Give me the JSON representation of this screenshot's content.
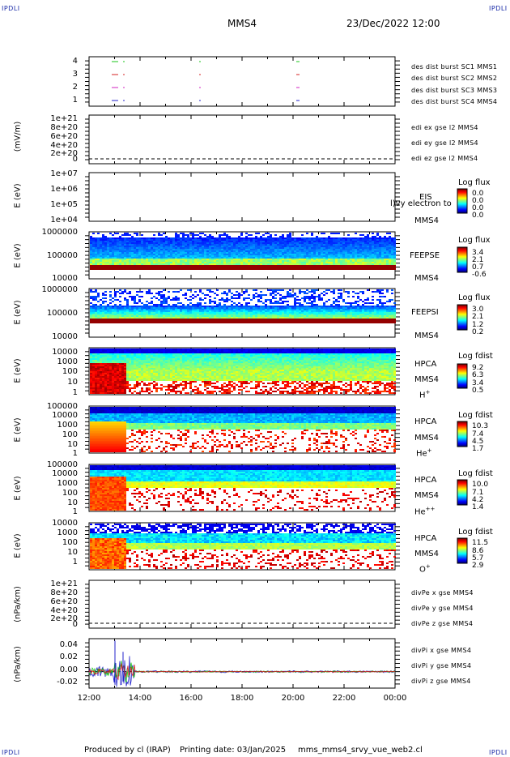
{
  "header": {
    "corner_label": "IPDLI",
    "spacecraft": "MMS4",
    "datetime": "23/Dec/2022 12:00"
  },
  "footer": {
    "produced_by": "Produced by cl (IRAP)",
    "printing_date": "Printing date: 03/Jan/2025",
    "file": "mms_mms4_srvy_vue_web2.cl"
  },
  "colors": {
    "red": "#d42020",
    "green": "#19c419",
    "blue": "#2222cc",
    "magenta": "#d020c0"
  },
  "time_axis": {
    "ticks": [
      "12:00",
      "14:00",
      "16:00",
      "18:00",
      "20:00",
      "22:00",
      "00:00"
    ]
  },
  "chart_data": [
    {
      "type": "scatter",
      "ylabel": "",
      "yticks": [
        "4",
        "3",
        "2",
        "1"
      ],
      "series": [
        {
          "name": "des dist burst SC1 MMS1",
          "color": "#2222cc"
        },
        {
          "name": "des dist burst SC2 MMS2",
          "color": "#d020c0"
        },
        {
          "name": "des dist burst SC3 MMS3",
          "color": "#d42020"
        },
        {
          "name": "des dist burst SC4 MMS4",
          "color": "#19c419"
        }
      ]
    },
    {
      "type": "line",
      "ylabel": "(mV/m)",
      "yticks": [
        "1e+21",
        "8e+20",
        "6e+20",
        "4e+20",
        "2e+20",
        "0"
      ],
      "series": [
        {
          "name": "edi ex gse l2 MMS4",
          "color": "#d42020"
        },
        {
          "name": "edi ey gse l2 MMS4",
          "color": "#19c419"
        },
        {
          "name": "edi ez gse l2 MMS4",
          "color": "#2222cc"
        }
      ]
    },
    {
      "type": "heatmap",
      "ylabel": "E (eV)",
      "yticks": [
        "1e+07",
        "1e+06",
        "1e+05",
        "1e+04"
      ],
      "instrument": "EIS",
      "spacecraft": "MMS4",
      "overlay_text": "l)vy electron to",
      "colorbar": {
        "title": "Log flux",
        "values": [
          "0.0",
          "0.0",
          "0.0",
          "0.0"
        ]
      }
    },
    {
      "type": "heatmap",
      "ylabel": "E (eV)",
      "yticks": [
        "1000000",
        "100000",
        "10000"
      ],
      "instrument": "FEEPSE",
      "spacecraft": "MMS4",
      "colorbar": {
        "title": "Log flux",
        "values": [
          "3.4",
          "2.1",
          "0.7",
          "-0.6"
        ]
      }
    },
    {
      "type": "heatmap",
      "ylabel": "E (eV)",
      "yticks": [
        "1000000",
        "100000",
        "10000"
      ],
      "instrument": "FEEPSI",
      "spacecraft": "MMS4",
      "colorbar": {
        "title": "Log flux",
        "values": [
          "3.0",
          "2.1",
          "1.2",
          "0.2"
        ]
      }
    },
    {
      "type": "heatmap",
      "ylabel": "E (eV)",
      "yticks": [
        "10000",
        "1000",
        "100",
        "10",
        "1"
      ],
      "instrument": "HPCA",
      "spacecraft": "MMS4",
      "species": "H",
      "charge": "+",
      "colorbar": {
        "title": "Log fdist",
        "values": [
          "9.2",
          "6.3",
          "3.4",
          "0.5"
        ]
      }
    },
    {
      "type": "heatmap",
      "ylabel": "E (eV)",
      "yticks": [
        "100000",
        "10000",
        "1000",
        "100",
        "10",
        "1"
      ],
      "instrument": "HPCA",
      "spacecraft": "MMS4",
      "species": "He",
      "charge": "+",
      "colorbar": {
        "title": "Log fdist",
        "values": [
          "10.3",
          "7.4",
          "4.5",
          "1.7"
        ]
      }
    },
    {
      "type": "heatmap",
      "ylabel": "E (eV)",
      "yticks": [
        "100000",
        "10000",
        "1000",
        "100",
        "10",
        "1"
      ],
      "instrument": "HPCA",
      "spacecraft": "MMS4",
      "species": "He",
      "charge": "++",
      "colorbar": {
        "title": "Log fdist",
        "values": [
          "10.0",
          "7.1",
          "4.2",
          "1.4"
        ]
      }
    },
    {
      "type": "heatmap",
      "ylabel": "E (eV)",
      "yticks": [
        "10000",
        "1000",
        "100",
        "10",
        "1"
      ],
      "instrument": "HPCA",
      "spacecraft": "MMS4",
      "species": "O",
      "charge": "+",
      "colorbar": {
        "title": "Log fdist",
        "values": [
          "11.5",
          "8.6",
          "5.7",
          "2.9"
        ]
      }
    },
    {
      "type": "line",
      "ylabel": "(nPa/km)",
      "yticks": [
        "1e+21",
        "8e+20",
        "6e+20",
        "4e+20",
        "2e+20",
        "0"
      ],
      "series": [
        {
          "name": "divPe x gse MMS4",
          "color": "#d42020"
        },
        {
          "name": "divPe y gse MMS4",
          "color": "#19c419"
        },
        {
          "name": "divPe z gse MMS4",
          "color": "#2222cc"
        }
      ]
    },
    {
      "type": "line",
      "ylabel": "(nPa/km)",
      "yticks": [
        "0.04",
        "0.02",
        "0.00",
        "-0.02"
      ],
      "ylim": [
        -0.025,
        0.05
      ],
      "series": [
        {
          "name": "divPi x gse MMS4",
          "color": "#d42020"
        },
        {
          "name": "divPi y gse MMS4",
          "color": "#19c419"
        },
        {
          "name": "divPi z gse MMS4",
          "color": "#2222cc"
        }
      ]
    }
  ]
}
